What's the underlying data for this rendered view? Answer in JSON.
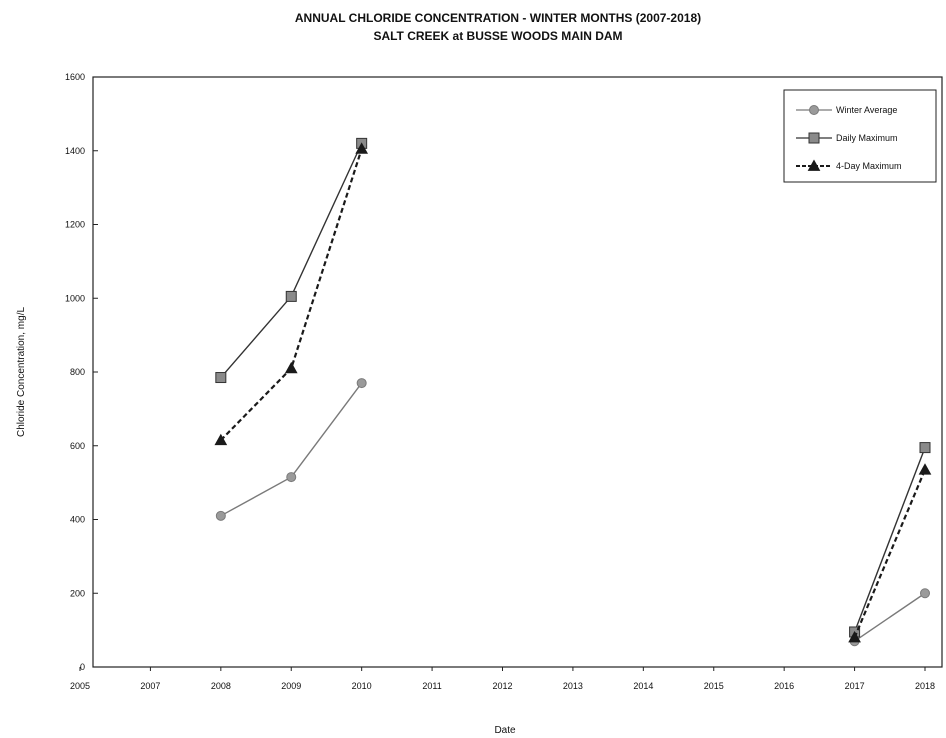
{
  "chart_data": {
    "type": "line",
    "title": "ANNUAL CHLORIDE CONCENTRATION - WINTER MONTHS (2007-2018)",
    "subtitle": "SALT CREEK at BUSSE WOODS MAIN DAM",
    "xlabel": "Date",
    "ylabel": "Chloride Concentration, mg/L",
    "x_ticks": [
      "2005",
      "2007",
      "2008",
      "2009",
      "2010",
      "2011",
      "2012",
      "2013",
      "2014",
      "2015",
      "2016",
      "2017",
      "2018"
    ],
    "y_ticks": [
      0,
      200,
      400,
      600,
      800,
      1000,
      1200,
      1400,
      1600
    ],
    "ylim": [
      0,
      1600
    ],
    "grid": false,
    "legend_position": "top-right",
    "series": [
      {
        "name": "Winter Average",
        "color": "#7a7a7a",
        "marker": "circle",
        "line": "solid",
        "points": [
          {
            "x": "2008",
            "y": 410
          },
          {
            "x": "2009",
            "y": 515
          },
          {
            "x": "2010",
            "y": 770
          },
          {
            "x": "2017",
            "y": 70
          },
          {
            "x": "2018",
            "y": 200
          }
        ]
      },
      {
        "name": "Daily Maximum",
        "color": "#333333",
        "marker": "square",
        "line": "solid",
        "points": [
          {
            "x": "2008",
            "y": 785
          },
          {
            "x": "2009",
            "y": 1005
          },
          {
            "x": "2010",
            "y": 1420
          },
          {
            "x": "2017",
            "y": 95
          },
          {
            "x": "2018",
            "y": 595
          }
        ]
      },
      {
        "name": "4-Day Maximum",
        "color": "#1a1a1a",
        "marker": "triangle",
        "line": "dashed",
        "points": [
          {
            "x": "2008",
            "y": 615
          },
          {
            "x": "2009",
            "y": 810
          },
          {
            "x": "2010",
            "y": 1405
          },
          {
            "x": "2017",
            "y": 80
          },
          {
            "x": "2018",
            "y": 535
          }
        ]
      }
    ]
  }
}
